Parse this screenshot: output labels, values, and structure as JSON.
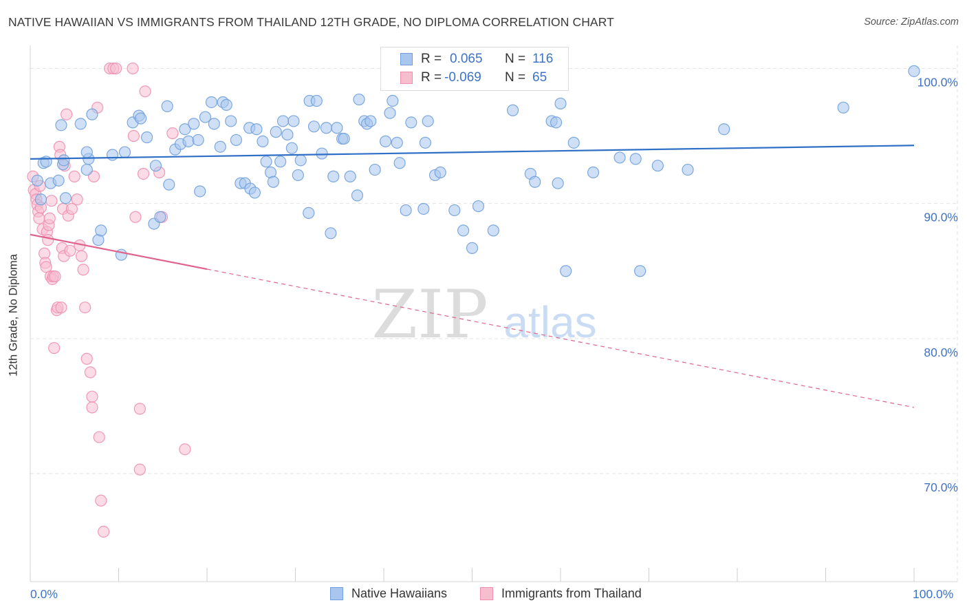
{
  "title": "NATIVE HAWAIIAN VS IMMIGRANTS FROM THAILAND 12TH GRADE, NO DIPLOMA CORRELATION CHART",
  "source": "Source: ZipAtlas.com",
  "watermark": {
    "zip": "ZIP",
    "atlas": "atlas"
  },
  "colors": {
    "blue_fill": "#a8c6ee",
    "blue_stroke": "#6f9fdc",
    "blue_line": "#2f6fc6",
    "pink_fill": "#f7bed0",
    "pink_stroke": "#ee8fb0",
    "pink_line": "#e0638f",
    "tick_label": "#3d73c7",
    "grid": "#e3e3e3"
  },
  "legend": {
    "rows": [
      {
        "r_label": "R =",
        "r_value": "0.065",
        "n_label": "N =",
        "n_value": "116"
      },
      {
        "r_label": "R =",
        "r_value": "-0.069",
        "n_label": "N =",
        "n_value": "65"
      }
    ]
  },
  "bottom_legend": [
    "Native Hawaiians",
    "Immigrants from Thailand"
  ],
  "chart_data": {
    "type": "scatter",
    "ylabel": "12th Grade, No Diploma",
    "xlim": [
      0,
      100
    ],
    "ylim": [
      62,
      101.5
    ],
    "x_tick_labels": [
      "0.0%",
      "100.0%"
    ],
    "y_ticks": [
      70,
      80,
      90,
      100
    ],
    "y_tick_labels": [
      "70.0%",
      "80.0%",
      "90.0%",
      "100.0%"
    ],
    "grid": true,
    "series": [
      {
        "name": "Native Hawaiians",
        "color": "#a8c6ee",
        "trend": {
          "x": [
            0,
            100
          ],
          "y": [
            93.3,
            94.3
          ],
          "solid_to_x": 100
        },
        "points": [
          [
            0.8,
            91.7
          ],
          [
            1.2,
            90.3
          ],
          [
            1.5,
            93.0
          ],
          [
            1.8,
            93.1
          ],
          [
            2.3,
            91.5
          ],
          [
            3.2,
            91.7
          ],
          [
            3.7,
            92.9
          ],
          [
            3.8,
            93.2
          ],
          [
            3.5,
            95.8
          ],
          [
            4.0,
            90.4
          ],
          [
            5.7,
            95.9
          ],
          [
            6.4,
            92.5
          ],
          [
            6.6,
            93.3
          ],
          [
            6.4,
            93.8
          ],
          [
            7.0,
            96.6
          ],
          [
            7.7,
            87.3
          ],
          [
            8.0,
            88.0
          ],
          [
            9.3,
            93.6
          ],
          [
            10.3,
            86.2
          ],
          [
            10.7,
            93.8
          ],
          [
            11.6,
            96.0
          ],
          [
            12.3,
            96.5
          ],
          [
            12.5,
            96.3
          ],
          [
            13.2,
            94.9
          ],
          [
            14.0,
            88.5
          ],
          [
            14.2,
            92.8
          ],
          [
            14.7,
            89.0
          ],
          [
            15.5,
            97.2
          ],
          [
            15.7,
            91.4
          ],
          [
            16.4,
            94.0
          ],
          [
            17.0,
            94.4
          ],
          [
            17.5,
            95.5
          ],
          [
            17.9,
            94.6
          ],
          [
            18.5,
            95.9
          ],
          [
            19.0,
            94.7
          ],
          [
            19.2,
            90.9
          ],
          [
            19.8,
            96.4
          ],
          [
            20.5,
            97.5
          ],
          [
            20.8,
            95.9
          ],
          [
            21.5,
            94.2
          ],
          [
            21.8,
            97.5
          ],
          [
            22.2,
            97.3
          ],
          [
            22.7,
            96.1
          ],
          [
            23.3,
            94.7
          ],
          [
            23.8,
            91.5
          ],
          [
            24.3,
            91.5
          ],
          [
            24.8,
            95.6
          ],
          [
            24.9,
            91.1
          ],
          [
            25.4,
            90.8
          ],
          [
            25.6,
            95.5
          ],
          [
            26.3,
            94.6
          ],
          [
            26.7,
            93.1
          ],
          [
            27.2,
            92.3
          ],
          [
            27.5,
            91.6
          ],
          [
            27.8,
            95.3
          ],
          [
            28.3,
            93.1
          ],
          [
            28.6,
            96.1
          ],
          [
            29.1,
            95.1
          ],
          [
            29.6,
            94.1
          ],
          [
            29.8,
            96.1
          ],
          [
            30.3,
            92.1
          ],
          [
            30.6,
            93.2
          ],
          [
            31.5,
            89.3
          ],
          [
            31.6,
            97.6
          ],
          [
            32.1,
            95.7
          ],
          [
            32.4,
            97.6
          ],
          [
            33.0,
            93.7
          ],
          [
            33.5,
            95.6
          ],
          [
            34.0,
            87.8
          ],
          [
            34.3,
            92.0
          ],
          [
            34.7,
            95.6
          ],
          [
            35.3,
            94.8
          ],
          [
            35.5,
            94.8
          ],
          [
            36.2,
            92.0
          ],
          [
            37.0,
            90.6
          ],
          [
            37.2,
            97.7
          ],
          [
            37.8,
            96.1
          ],
          [
            38.1,
            95.9
          ],
          [
            38.5,
            96.1
          ],
          [
            39.0,
            92.5
          ],
          [
            40.2,
            94.6
          ],
          [
            40.7,
            96.7
          ],
          [
            41.0,
            97.6
          ],
          [
            41.5,
            94.5
          ],
          [
            41.8,
            93.0
          ],
          [
            42.5,
            89.5
          ],
          [
            43.1,
            96.0
          ],
          [
            44.5,
            89.6
          ],
          [
            44.7,
            94.5
          ],
          [
            45.0,
            96.1
          ],
          [
            45.8,
            92.1
          ],
          [
            46.4,
            92.3
          ],
          [
            48.0,
            89.5
          ],
          [
            49.0,
            88.0
          ],
          [
            50.0,
            86.7
          ],
          [
            50.7,
            89.8
          ],
          [
            52.4,
            88.0
          ],
          [
            52.8,
            99.6
          ],
          [
            54.6,
            96.9
          ],
          [
            55.8,
            99.8
          ],
          [
            56.6,
            92.2
          ],
          [
            57.1,
            91.6
          ],
          [
            59.0,
            96.1
          ],
          [
            59.5,
            96.0
          ],
          [
            59.7,
            91.5
          ],
          [
            60.0,
            97.4
          ],
          [
            60.6,
            85.0
          ],
          [
            61.5,
            94.5
          ],
          [
            63.7,
            92.3
          ],
          [
            66.7,
            93.4
          ],
          [
            68.5,
            93.3
          ],
          [
            69.0,
            85.0
          ],
          [
            71.0,
            92.8
          ],
          [
            74.4,
            92.5
          ],
          [
            78.5,
            95.5
          ],
          [
            92.0,
            97.1
          ],
          [
            100.0,
            99.8
          ]
        ]
      },
      {
        "name": "Immigrants from Thailand",
        "color": "#f7bed0",
        "trend": {
          "x": [
            0,
            100
          ],
          "y": [
            87.7,
            74.9
          ],
          "solid_to_x": 20
        },
        "points": [
          [
            0.3,
            92.0
          ],
          [
            0.4,
            91.0
          ],
          [
            0.6,
            90.7
          ],
          [
            0.7,
            90.3
          ],
          [
            0.8,
            89.9
          ],
          [
            0.9,
            89.4
          ],
          [
            1.0,
            88.9
          ],
          [
            1.1,
            91.3
          ],
          [
            1.2,
            89.7
          ],
          [
            1.4,
            88.1
          ],
          [
            1.6,
            86.3
          ],
          [
            1.7,
            85.6
          ],
          [
            1.8,
            85.3
          ],
          [
            1.9,
            87.9
          ],
          [
            2.0,
            87.3
          ],
          [
            2.1,
            88.4
          ],
          [
            2.2,
            88.9
          ],
          [
            2.3,
            84.6
          ],
          [
            2.4,
            90.2
          ],
          [
            2.5,
            84.4
          ],
          [
            2.6,
            84.6
          ],
          [
            2.7,
            79.3
          ],
          [
            2.8,
            84.6
          ],
          [
            3.0,
            82.1
          ],
          [
            3.1,
            82.3
          ],
          [
            3.3,
            94.2
          ],
          [
            3.4,
            93.6
          ],
          [
            3.6,
            86.7
          ],
          [
            3.7,
            89.6
          ],
          [
            3.8,
            86.1
          ],
          [
            3.9,
            92.8
          ],
          [
            4.1,
            96.6
          ],
          [
            4.3,
            89.1
          ],
          [
            4.5,
            86.5
          ],
          [
            4.7,
            89.6
          ],
          [
            5.0,
            92.0
          ],
          [
            5.3,
            90.3
          ],
          [
            5.6,
            86.9
          ],
          [
            5.8,
            86.1
          ],
          [
            6.0,
            85.1
          ],
          [
            6.2,
            82.3
          ],
          [
            6.4,
            78.5
          ],
          [
            6.8,
            77.5
          ],
          [
            7.0,
            75.7
          ],
          [
            7.0,
            74.9
          ],
          [
            7.2,
            92.0
          ],
          [
            7.6,
            97.1
          ],
          [
            7.8,
            72.7
          ],
          [
            8.0,
            68.0
          ],
          [
            8.3,
            65.7
          ],
          [
            9.0,
            100.0
          ],
          [
            9.4,
            100.0
          ],
          [
            9.7,
            100.0
          ],
          [
            11.6,
            100.0
          ],
          [
            11.7,
            95.0
          ],
          [
            11.9,
            89.0
          ],
          [
            12.4,
            74.8
          ],
          [
            12.4,
            70.3
          ],
          [
            12.8,
            92.2
          ],
          [
            13.0,
            98.3
          ],
          [
            14.6,
            92.3
          ],
          [
            14.9,
            89.0
          ],
          [
            16.1,
            95.2
          ],
          [
            17.5,
            71.8
          ],
          [
            3.5,
            82.3
          ]
        ]
      }
    ]
  }
}
